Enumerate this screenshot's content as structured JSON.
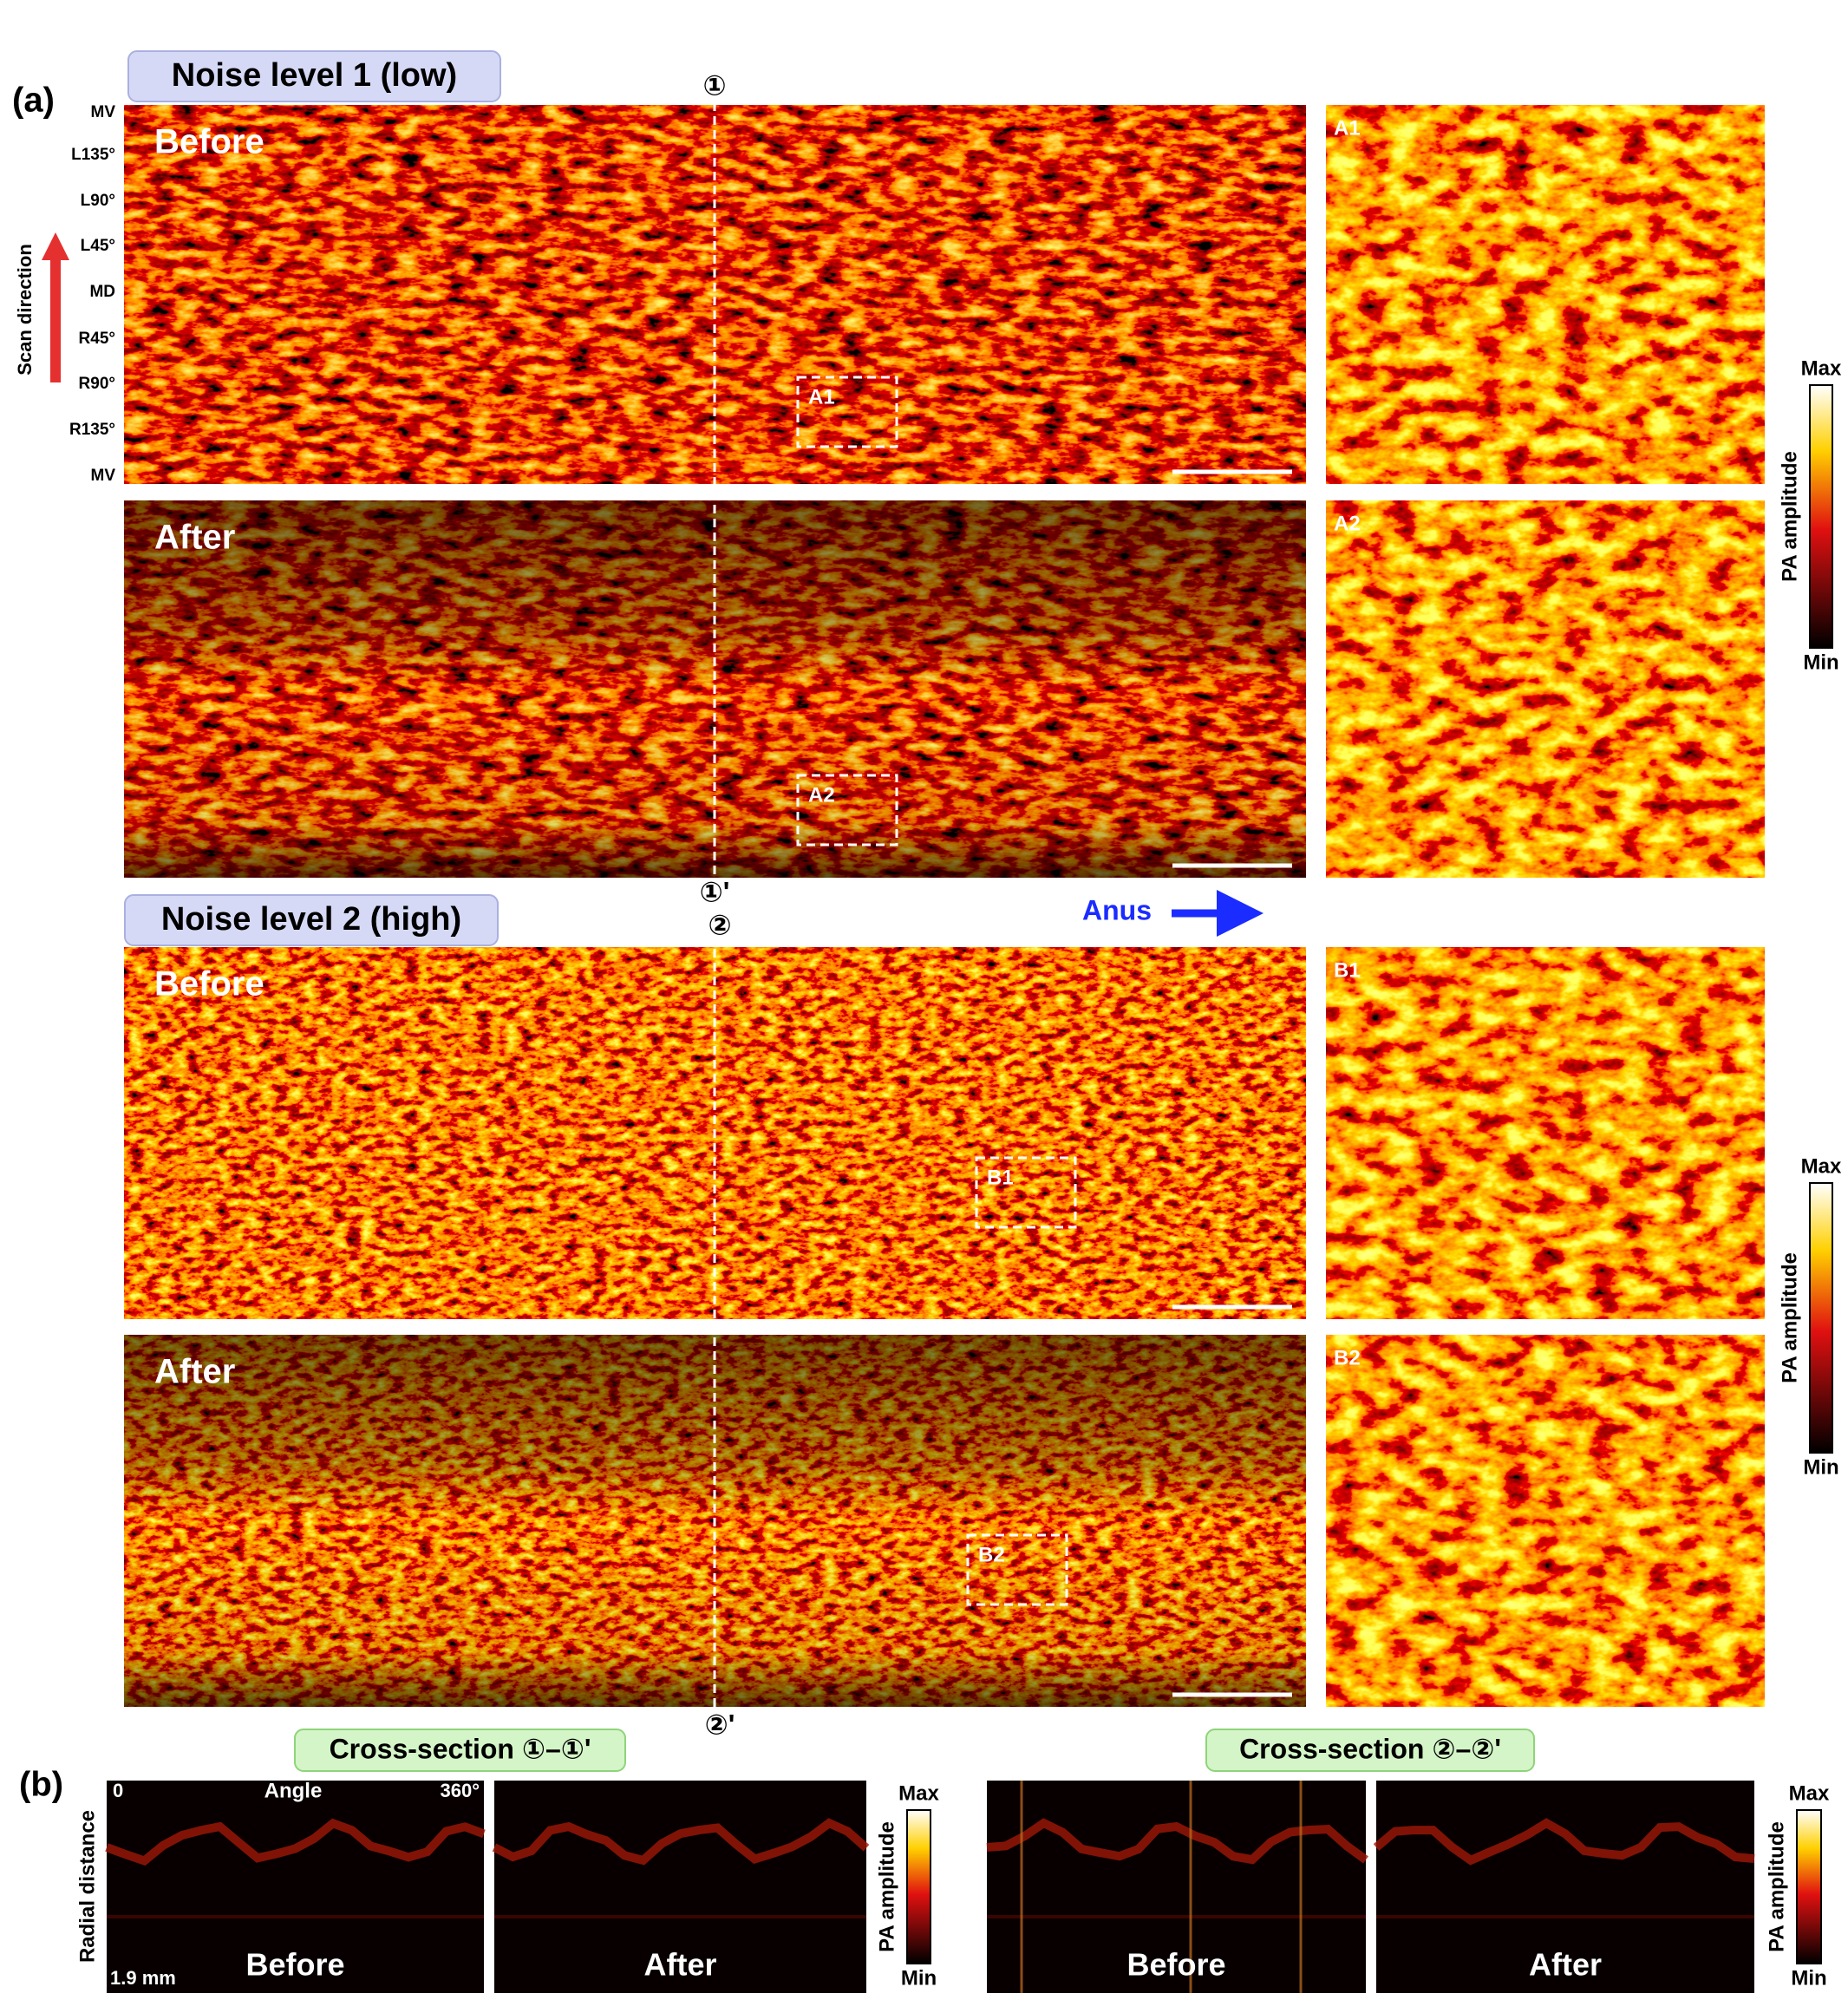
{
  "panel_a": {
    "label": "(a)",
    "scan_direction": "Scan direction",
    "angle_labels": [
      "MV",
      "L135°",
      "L90°",
      "L45°",
      "MD",
      "R45°",
      "R90°",
      "R135°",
      "MV"
    ],
    "direction": "Anus",
    "groups": [
      {
        "title": "Noise level 1 (low)",
        "section_start": "①",
        "section_end": "①'",
        "rows": [
          {
            "label": "Before",
            "inset": "A1"
          },
          {
            "label": "After",
            "inset": "A2"
          }
        ]
      },
      {
        "title": "Noise level 2 (high)",
        "section_start": "②",
        "section_end": "②'",
        "rows": [
          {
            "label": "Before",
            "inset": "B1"
          },
          {
            "label": "After",
            "inset": "B2"
          }
        ]
      }
    ]
  },
  "colorbar": {
    "max": "Max",
    "label": "PA amplitude",
    "min": "Min"
  },
  "panel_b": {
    "label": "(b)",
    "sections": [
      {
        "title": "Cross-section ①–①'",
        "before": "Before",
        "after": "After"
      },
      {
        "title": "Cross-section ②–②'",
        "before": "Before",
        "after": "After"
      }
    ],
    "x_start": "0",
    "x_label": "Angle",
    "x_end": "360°",
    "y_label": "Radial distance",
    "scale": "1.9 mm"
  }
}
